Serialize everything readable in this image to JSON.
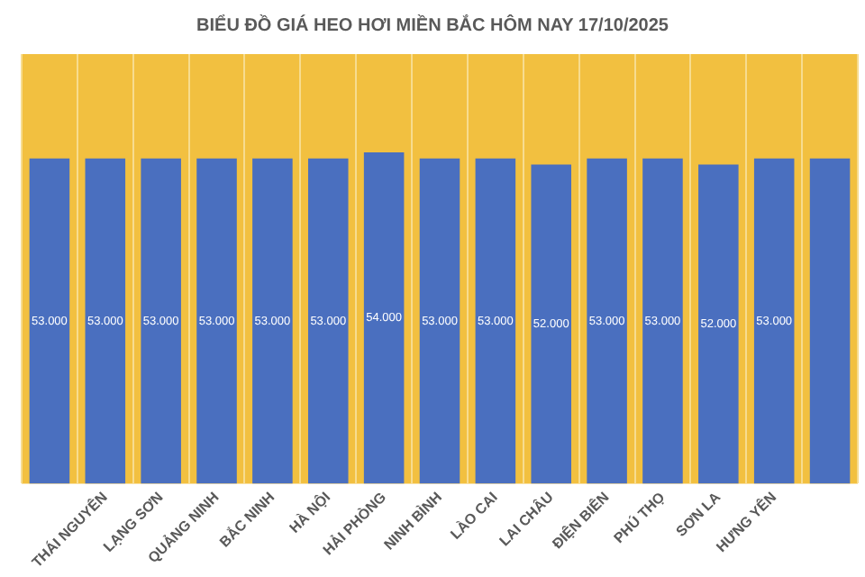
{
  "chart_data": {
    "type": "bar",
    "title": "BIỂU ĐỒ GIÁ HEO HƠI MIỀN BẮC HÔM NAY 17/10/2025",
    "categories": [
      null,
      "THÁI NGUYÊN",
      "LẠNG SƠN",
      "QUẢNG NINH",
      "BẮC NINH",
      "HÀ NỘI",
      "HẢI PHÒNG",
      "NINH BÌNH",
      "LÀO CAI",
      "LAI CHÂU",
      "ĐIỆN BIÊN",
      "PHÚ THỌ",
      "SƠN LA",
      "HƯNG YÊN",
      null
    ],
    "values": [
      53000,
      53000,
      53000,
      53000,
      53000,
      53000,
      54000,
      53000,
      53000,
      52000,
      53000,
      53000,
      52000,
      53000,
      53000
    ],
    "value_labels": [
      "53.000",
      "53.000",
      "53.000",
      "53.000",
      "53.000",
      "53.000",
      "54.000",
      "53.000",
      "53.000",
      "52.000",
      "53.000",
      "53.000",
      "52.000",
      "53.000",
      null
    ],
    "color": "#4a6fbf",
    "relative": false,
    "grid": "x"
  }
}
